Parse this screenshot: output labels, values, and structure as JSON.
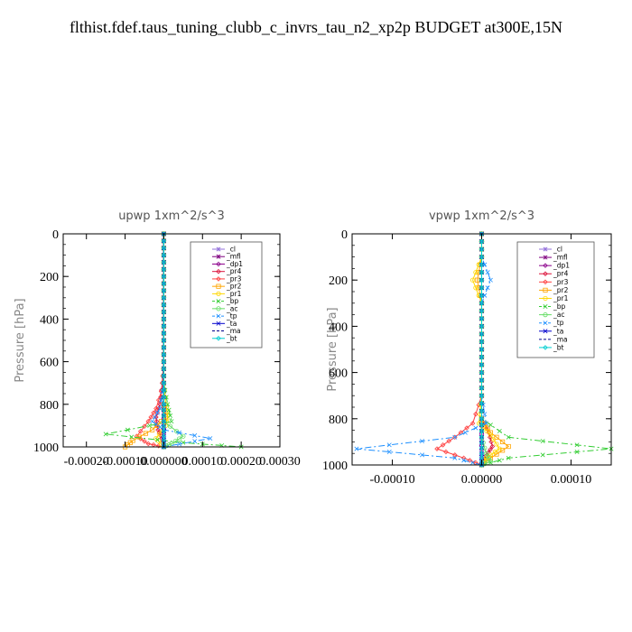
{
  "title": "flthist.fdef.taus_tuning_clubb_c_invrs_tau_n2_xp2p  BUDGET at300E,15N",
  "chart_data": [
    {
      "type": "line",
      "title": "upwp   1xm^2/s^3",
      "ylabel": "Pressure [hPa]",
      "xlim": [
        -0.00026,
        0.0003
      ],
      "ylim": [
        1000,
        0
      ],
      "xticks": [
        "-0.00020",
        "-0.00010",
        "0.000000",
        "0.00010",
        "0.00020",
        "0.00030"
      ],
      "xtick_values": [
        -0.0002,
        -0.0001,
        0.0,
        0.0001,
        0.0002,
        0.0003
      ],
      "yticks": [
        0,
        200,
        400,
        600,
        800,
        1000
      ],
      "series": [
        {
          "name": "_cl",
          "color": "#9370DB",
          "style": "solid",
          "x": [
            0,
            0,
            0,
            0,
            0,
            0,
            0,
            0,
            0,
            0,
            0,
            0
          ],
          "y": [
            0,
            100,
            200,
            300,
            400,
            500,
            600,
            700,
            800,
            880,
            950,
            1000
          ]
        },
        {
          "name": "_mfl",
          "color": "#800080",
          "style": "solid",
          "x": [
            0,
            0,
            0,
            0,
            0,
            0,
            0,
            0,
            0,
            0,
            0,
            0
          ],
          "y": [
            0,
            100,
            200,
            300,
            400,
            500,
            600,
            700,
            800,
            880,
            950,
            1000
          ]
        },
        {
          "name": "_dp1",
          "color": "#8B008B",
          "style": "solid",
          "x": [
            0,
            0,
            0,
            0,
            0,
            0,
            0,
            0,
            0,
            0,
            0,
            0,
            0
          ],
          "y": [
            0,
            100,
            200,
            300,
            400,
            500,
            600,
            700,
            800,
            850,
            900,
            950,
            1000
          ]
        },
        {
          "name": "_pr4",
          "color": "#DC143C",
          "style": "solid",
          "x": [
            0,
            0,
            0,
            0,
            0,
            0,
            0,
            -4e-06,
            -1e-05,
            -2e-05,
            -1.5e-05,
            -5e-06,
            0
          ],
          "y": [
            0,
            100,
            200,
            300,
            400,
            500,
            600,
            700,
            800,
            860,
            920,
            960,
            1000
          ]
        },
        {
          "name": "_pr3",
          "color": "#FF4040",
          "style": "solid",
          "x": [
            0,
            0,
            0,
            0,
            0,
            0,
            0,
            0,
            -2e-05,
            -4e-05,
            -7e-05,
            -4e-05,
            0
          ],
          "y": [
            0,
            100,
            200,
            300,
            400,
            500,
            600,
            700,
            820,
            880,
            950,
            985,
            1000
          ]
        },
        {
          "name": "_pr2",
          "color": "#FFA500",
          "style": "solid",
          "x": [
            0,
            0,
            0,
            0,
            0,
            0,
            0,
            0,
            0,
            5e-06,
            -3e-05,
            -8e-05,
            -0.0001
          ],
          "y": [
            0,
            100,
            200,
            300,
            400,
            500,
            600,
            700,
            800,
            860,
            920,
            970,
            1000
          ]
        },
        {
          "name": "_pr1",
          "color": "#FFD700",
          "style": "solid",
          "x": [
            0,
            0,
            0,
            0,
            0,
            0,
            0,
            0,
            5e-06,
            1e-05,
            5e-06,
            -2e-05,
            0
          ],
          "y": [
            0,
            100,
            200,
            300,
            400,
            500,
            600,
            700,
            800,
            850,
            900,
            960,
            1000
          ]
        },
        {
          "name": "_bp",
          "color": "#32CD32",
          "style": "dashdot",
          "x": [
            0,
            0,
            0,
            0,
            0,
            0,
            0,
            0,
            1e-05,
            2e-05,
            -0.00015,
            5e-05,
            0.0002
          ],
          "y": [
            0,
            100,
            200,
            300,
            400,
            500,
            600,
            700,
            800,
            880,
            940,
            980,
            1000
          ]
        },
        {
          "name": "_ac",
          "color": "#66DD66",
          "style": "solid",
          "x": [
            0,
            0,
            0,
            0,
            0,
            0,
            0,
            0,
            0,
            0,
            5e-05,
            2e-05,
            0
          ],
          "y": [
            0,
            100,
            200,
            300,
            400,
            500,
            600,
            700,
            800,
            880,
            950,
            985,
            1000
          ]
        },
        {
          "name": "_tp",
          "color": "#1E90FF",
          "style": "dashdot",
          "x": [
            0,
            0,
            0,
            0,
            0,
            0,
            0,
            0,
            -1e-05,
            -3e-05,
            0.0,
            0.00012,
            0.0
          ],
          "y": [
            0,
            100,
            200,
            300,
            400,
            500,
            600,
            700,
            820,
            880,
            920,
            960,
            1000
          ]
        },
        {
          "name": "_ta",
          "color": "#0000CD",
          "style": "solid",
          "x": [
            0,
            0,
            0,
            0,
            0,
            0,
            0,
            0,
            0,
            0,
            0,
            0
          ],
          "y": [
            0,
            100,
            200,
            300,
            400,
            500,
            600,
            700,
            800,
            880,
            950,
            1000
          ]
        },
        {
          "name": "_ma",
          "color": "#00008B",
          "style": "dashed",
          "x": [
            0,
            0,
            0,
            0,
            0,
            0,
            0,
            0,
            0,
            0,
            0,
            0
          ],
          "y": [
            0,
            100,
            200,
            300,
            400,
            500,
            600,
            700,
            800,
            880,
            950,
            1000
          ]
        },
        {
          "name": "_bt",
          "color": "#00CED1",
          "style": "solid",
          "x": [
            0,
            0,
            0,
            0,
            0,
            0,
            0,
            0,
            0,
            0,
            0,
            0
          ],
          "y": [
            0,
            100,
            200,
            300,
            400,
            500,
            600,
            700,
            800,
            880,
            950,
            1000
          ]
        }
      ]
    },
    {
      "type": "line",
      "title": "vpwp   1xm^2/s^3",
      "ylabel": "Pressure [hPa]",
      "xlim": [
        -0.000145,
        0.000145
      ],
      "ylim": [
        1000,
        0
      ],
      "xticks": [
        "-0.00010",
        "0.00000",
        "0.00010"
      ],
      "xtick_values": [
        -0.0001,
        0.0,
        0.0001
      ],
      "yticks": [
        0,
        200,
        400,
        600,
        800,
        1000
      ],
      "series": [
        {
          "name": "_cl",
          "color": "#9370DB",
          "style": "solid",
          "x": [
            0,
            0,
            0,
            0,
            0,
            0,
            0,
            0,
            0,
            0,
            0,
            0
          ],
          "y": [
            0,
            100,
            200,
            300,
            400,
            500,
            600,
            700,
            800,
            880,
            950,
            1000
          ]
        },
        {
          "name": "_mfl",
          "color": "#800080",
          "style": "solid",
          "x": [
            0,
            0,
            0,
            0,
            0,
            0,
            0,
            0,
            0,
            0,
            0,
            0
          ],
          "y": [
            0,
            100,
            200,
            300,
            400,
            500,
            600,
            700,
            800,
            880,
            950,
            1000
          ]
        },
        {
          "name": "_dp1",
          "color": "#8B008B",
          "style": "solid",
          "x": [
            0,
            0,
            0,
            0,
            0,
            0,
            0,
            0,
            0,
            0,
            0,
            0,
            0
          ],
          "y": [
            0,
            100,
            200,
            300,
            400,
            500,
            600,
            700,
            800,
            850,
            900,
            950,
            1000
          ]
        },
        {
          "name": "_pr4",
          "color": "#DC143C",
          "style": "solid",
          "x": [
            0,
            0,
            0,
            0,
            0,
            0,
            0,
            0,
            0,
            8e-06,
            1.2e-05,
            5e-06,
            0
          ],
          "y": [
            0,
            100,
            200,
            300,
            400,
            500,
            600,
            700,
            800,
            860,
            920,
            960,
            1000
          ]
        },
        {
          "name": "_pr3",
          "color": "#FF4040",
          "style": "solid",
          "x": [
            0,
            0,
            0,
            0,
            0,
            0,
            0,
            0,
            -1e-05,
            -3e-05,
            -5e-05,
            -2e-05,
            0
          ],
          "y": [
            0,
            100,
            200,
            300,
            400,
            500,
            600,
            700,
            820,
            880,
            930,
            970,
            1000
          ]
        },
        {
          "name": "_pr2",
          "color": "#FFA500",
          "style": "solid",
          "x": [
            0,
            0,
            -5e-06,
            0,
            0,
            0,
            0,
            0,
            0,
            1e-05,
            3e-05,
            1e-05,
            0
          ],
          "y": [
            0,
            100,
            200,
            300,
            400,
            500,
            600,
            700,
            800,
            860,
            920,
            970,
            1000
          ]
        },
        {
          "name": "_pr1",
          "color": "#FFD700",
          "style": "solid",
          "x": [
            0,
            0,
            -1e-05,
            0,
            0,
            0,
            0,
            0,
            -3e-06,
            1e-05,
            2e-05,
            5e-06,
            0
          ],
          "y": [
            0,
            100,
            200,
            300,
            400,
            500,
            600,
            700,
            820,
            870,
            930,
            970,
            1000
          ]
        },
        {
          "name": "_bp",
          "color": "#32CD32",
          "style": "dashdot",
          "x": [
            0,
            0,
            0,
            0,
            0,
            0,
            0,
            0,
            0,
            3e-05,
            0.000145,
            3e-05,
            0
          ],
          "y": [
            0,
            100,
            200,
            300,
            400,
            500,
            600,
            700,
            800,
            880,
            930,
            970,
            1000
          ]
        },
        {
          "name": "_ac",
          "color": "#66DD66",
          "style": "solid",
          "x": [
            0,
            0,
            0,
            0,
            0,
            0,
            0,
            0,
            0,
            0,
            5e-06,
            1e-05,
            0
          ],
          "y": [
            0,
            100,
            200,
            300,
            400,
            500,
            600,
            700,
            800,
            880,
            950,
            985,
            1000
          ]
        },
        {
          "name": "_tp",
          "color": "#1E90FF",
          "style": "dashdot",
          "x": [
            0,
            0,
            1e-05,
            0,
            0,
            0,
            0,
            0,
            5e-06,
            -3e-05,
            -0.00014,
            -3e-05,
            0
          ],
          "y": [
            0,
            100,
            200,
            300,
            400,
            500,
            600,
            700,
            820,
            880,
            930,
            970,
            1000
          ]
        },
        {
          "name": "_ta",
          "color": "#0000CD",
          "style": "solid",
          "x": [
            0,
            0,
            0,
            0,
            0,
            0,
            0,
            0,
            0,
            0,
            0,
            0
          ],
          "y": [
            0,
            100,
            200,
            300,
            400,
            500,
            600,
            700,
            800,
            880,
            950,
            1000
          ]
        },
        {
          "name": "_ma",
          "color": "#00008B",
          "style": "dashed",
          "x": [
            0,
            0,
            0,
            0,
            0,
            0,
            0,
            0,
            0,
            0,
            0,
            0
          ],
          "y": [
            0,
            100,
            200,
            300,
            400,
            500,
            600,
            700,
            800,
            880,
            950,
            1000
          ]
        },
        {
          "name": "_bt",
          "color": "#00CED1",
          "style": "solid",
          "x": [
            0,
            0,
            0,
            0,
            0,
            0,
            0,
            0,
            0,
            0,
            0,
            0
          ],
          "y": [
            0,
            100,
            200,
            300,
            400,
            500,
            600,
            700,
            800,
            880,
            950,
            1000
          ]
        }
      ]
    }
  ]
}
